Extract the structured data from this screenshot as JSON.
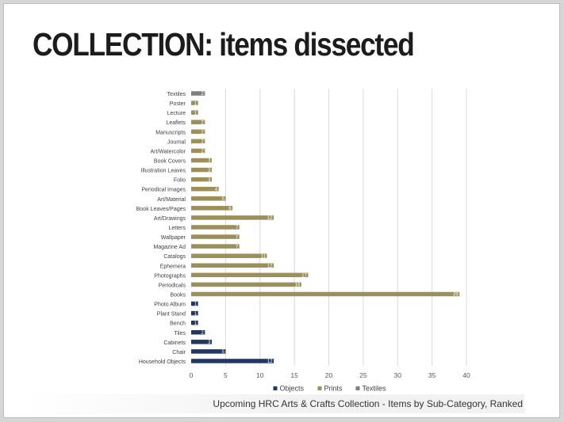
{
  "slide_title": "COLLECTION: items dissected",
  "caption": "Upcoming HRC Arts & Crafts Collection - Items by Sub-Category, Ranked",
  "chart_data": {
    "type": "bar",
    "orientation": "horizontal",
    "stacked": true,
    "title": "",
    "xlabel": "",
    "ylabel": "",
    "xlim": [
      0,
      40
    ],
    "x_ticks": [
      0,
      5,
      10,
      15,
      20,
      25,
      30,
      35,
      40
    ],
    "grid": true,
    "legend_position": "bottom",
    "categories": [
      "Textiles",
      "Poster",
      "Lecture",
      "Leaflets",
      "Manuscripts",
      "Journal",
      "Art/Watercolor",
      "Book Covers",
      "Illustration Leaves",
      "Folio",
      "Periodical Images",
      "Art/Material",
      "Book Leaves/Pages",
      "Art/Drawings",
      "Letters",
      "Wallpaper",
      "Magazine Ad",
      "Catalogs",
      "Ephemera",
      "Photographs",
      "Periodicals",
      "Books",
      "Photo Album",
      "Plant Stand",
      "Bench",
      "Tiles",
      "Cabinets",
      "Chair",
      "Household Objects"
    ],
    "series": [
      {
        "name": "Objects",
        "color": "#1f3864",
        "values": [
          0,
          0,
          0,
          0,
          0,
          0,
          0,
          0,
          0,
          0,
          0,
          0,
          0,
          0,
          0,
          0,
          0,
          0,
          0,
          0,
          0,
          0,
          1,
          1,
          1,
          2,
          3,
          5,
          12
        ]
      },
      {
        "name": "Prints",
        "color": "#9c8f5a",
        "values": [
          0,
          1,
          1,
          2,
          2,
          2,
          2,
          3,
          3,
          3,
          4,
          5,
          6,
          12,
          7,
          7,
          7,
          11,
          12,
          17,
          16,
          39,
          0,
          0,
          0,
          0,
          0,
          0,
          0
        ]
      },
      {
        "name": "Textiles",
        "color": "#7f7f7f",
        "values": [
          2,
          0,
          0,
          0,
          0,
          0,
          0,
          0,
          0,
          0,
          0,
          0,
          0,
          0,
          0,
          0,
          0,
          0,
          0,
          0,
          0,
          0,
          0,
          0,
          0,
          0,
          0,
          0,
          0
        ]
      }
    ]
  }
}
